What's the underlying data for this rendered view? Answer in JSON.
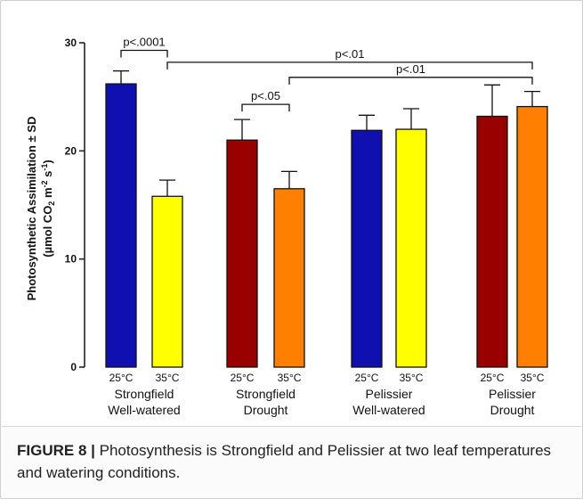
{
  "caption": {
    "label": "FIGURE 8 |",
    "text": "Photosynthesis is Strongfield and Pelissier at two leaf temperatures and watering conditions."
  },
  "chart_data": {
    "type": "bar",
    "ylabel": "Photosynthetic Assimilation ± SD",
    "ylabel_units": {
      "open": "(µmol CO",
      "sub": "2",
      "mid": " m",
      "sup1": "-2",
      "mid2": " s",
      "sup2": "-1",
      "close": ")"
    },
    "ylim": [
      0,
      30
    ],
    "yticks": [
      0,
      10,
      20,
      30
    ],
    "grid": false,
    "groups": [
      {
        "label_line1": "Strongfield",
        "label_line2": "Well-watered"
      },
      {
        "label_line1": "Strongfield",
        "label_line2": "Drought"
      },
      {
        "label_line1": "Pelissier",
        "label_line2": "Well-watered"
      },
      {
        "label_line1": "Pelissier",
        "label_line2": "Drought"
      }
    ],
    "bars": [
      {
        "group": 0,
        "label": "25°C",
        "value": 26.2,
        "sd": 1.2,
        "color": "#1010B0"
      },
      {
        "group": 0,
        "label": "35°C",
        "value": 15.8,
        "sd": 1.5,
        "color": "#FFFF00"
      },
      {
        "group": 1,
        "label": "25°C",
        "value": 21.0,
        "sd": 1.9,
        "color": "#990000"
      },
      {
        "group": 1,
        "label": "35°C",
        "value": 16.5,
        "sd": 1.6,
        "color": "#FF8000"
      },
      {
        "group": 2,
        "label": "25°C",
        "value": 21.9,
        "sd": 1.4,
        "color": "#1010B0"
      },
      {
        "group": 2,
        "label": "35°C",
        "value": 22.0,
        "sd": 1.9,
        "color": "#FFFF00"
      },
      {
        "group": 3,
        "label": "25°C",
        "value": 23.2,
        "sd": 2.9,
        "color": "#990000"
      },
      {
        "group": 3,
        "label": "35°C",
        "value": 24.1,
        "sd": 1.4,
        "color": "#FF8000"
      }
    ],
    "annotations": [
      {
        "text": "p<.0001",
        "from": 0,
        "to": 1,
        "y": 29.3
      },
      {
        "text": "p<.01",
        "from": 1,
        "to": 7,
        "y": 28.2
      },
      {
        "text": "p<.01",
        "from": 3,
        "to": 7,
        "y": 26.8
      },
      {
        "text": "p<.05",
        "from": 2,
        "to": 3,
        "y": 24.3
      }
    ]
  }
}
